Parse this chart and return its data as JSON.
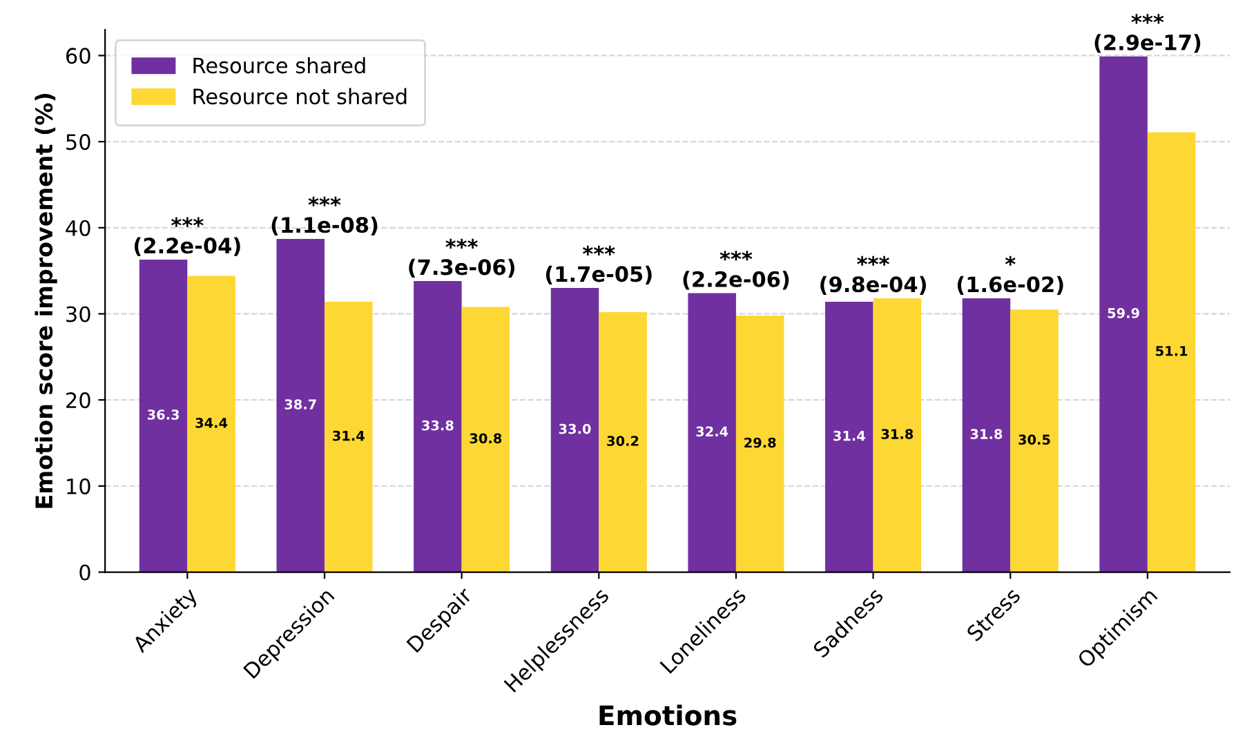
{
  "chart_data": {
    "type": "bar",
    "xlabel": "Emotions",
    "ylabel": "Emotion score improvement (%)",
    "categories": [
      "Anxiety",
      "Depression",
      "Despair",
      "Helplessness",
      "Loneliness",
      "Sadness",
      "Stress",
      "Optimism"
    ],
    "series": [
      {
        "name": "Resource shared",
        "color": "#7030a0",
        "values": [
          36.3,
          38.7,
          33.8,
          33.0,
          32.4,
          31.4,
          31.8,
          59.9
        ],
        "value_labels": [
          "36.3",
          "38.7",
          "33.8",
          "33.0",
          "32.4",
          "31.4",
          "31.8",
          "59.9"
        ]
      },
      {
        "name": "Resource not shared",
        "color": "#fdd835",
        "values": [
          34.4,
          31.4,
          30.8,
          30.2,
          29.8,
          31.8,
          30.5,
          51.1
        ],
        "value_labels": [
          "34.4",
          "31.4",
          "30.8",
          "30.2",
          "29.8",
          "31.8",
          "30.5",
          "51.1"
        ]
      }
    ],
    "ylim": [
      0,
      63
    ],
    "yticks": [
      0,
      10,
      20,
      30,
      40,
      50,
      60
    ],
    "grid": "y",
    "legend": "top left",
    "annotations": [
      {
        "text": "***\n(2.2e-04)",
        "x": "Anxiety",
        "y": 36.3
      },
      {
        "text": "***\n(1.1e-08)",
        "x": "Depression",
        "y": 38.7
      },
      {
        "text": "***\n(7.3e-06)",
        "x": "Despair",
        "y": 33.8
      },
      {
        "text": "***\n(1.7e-05)",
        "x": "Helplessness",
        "y": 33.0
      },
      {
        "text": "***\n(2.2e-06)",
        "x": "Loneliness",
        "y": 32.4
      },
      {
        "text": "***\n(9.8e-04)",
        "x": "Sadness",
        "y": 31.8
      },
      {
        "text": "*\n(1.6e-02)",
        "x": "Stress",
        "y": 31.8
      },
      {
        "text": "***\n(2.9e-17)",
        "x": "Optimism",
        "y": 59.9
      }
    ]
  }
}
